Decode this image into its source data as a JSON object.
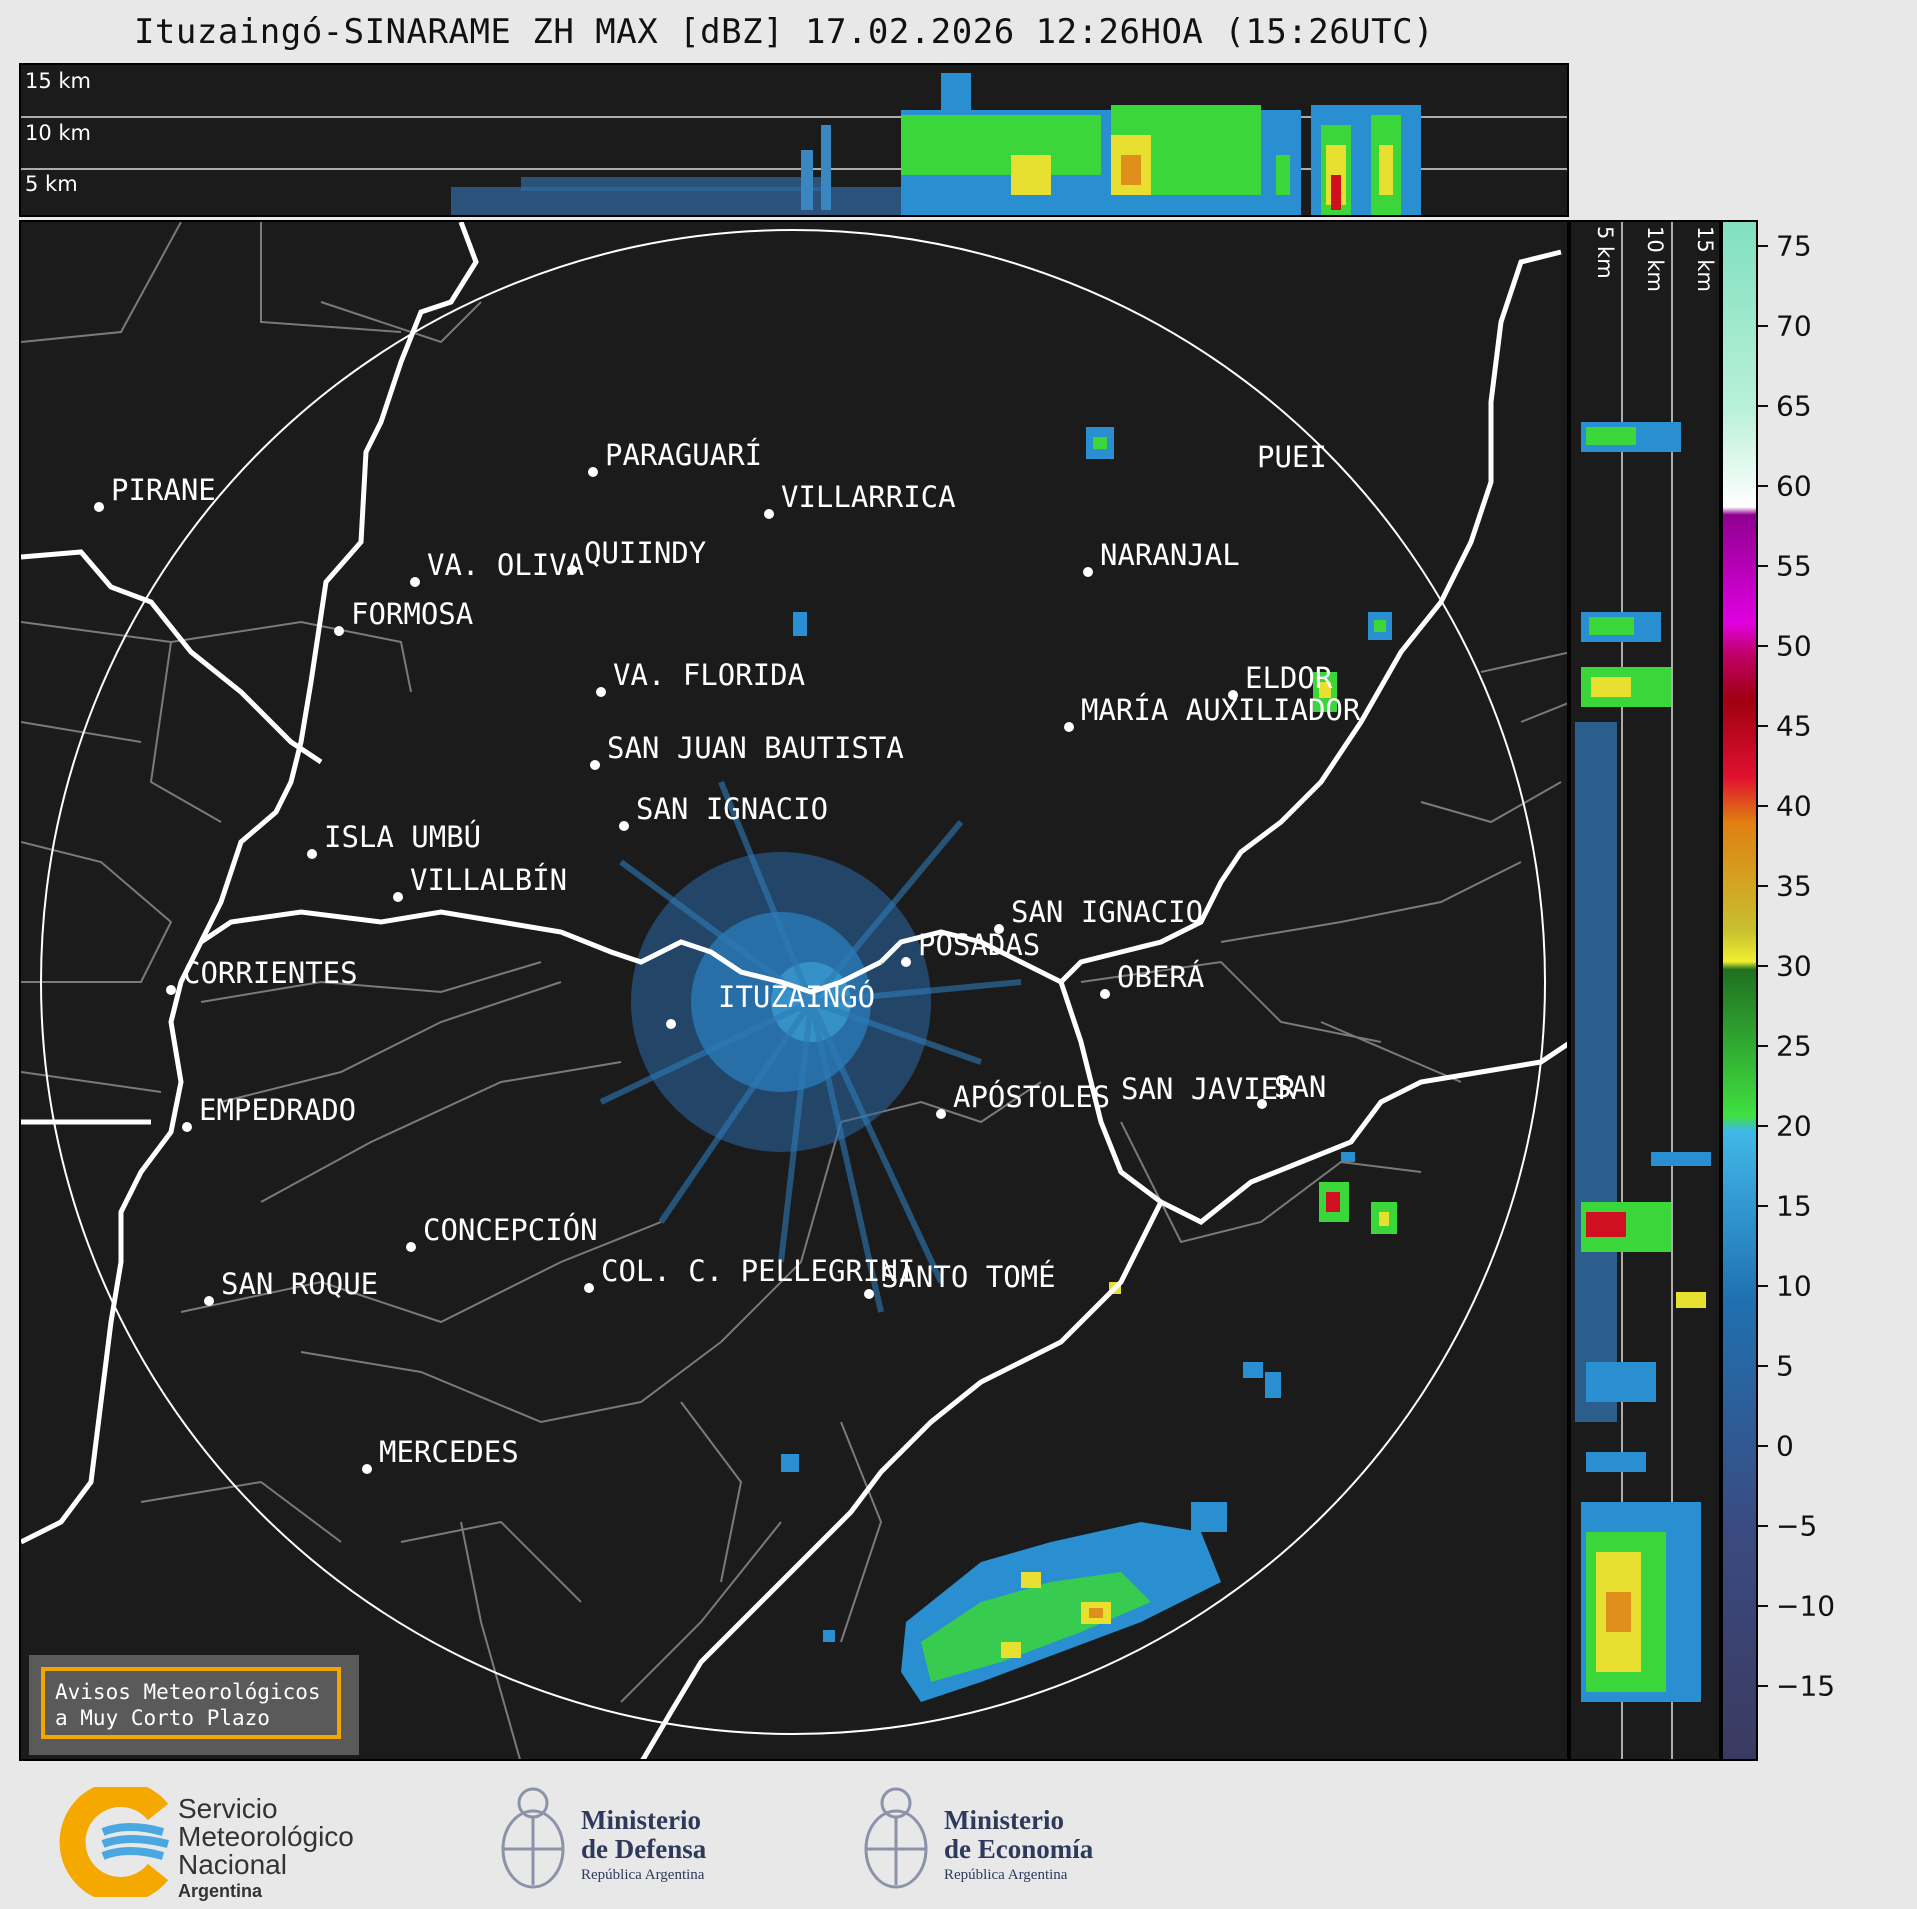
{
  "title": "Ituzaingó-SINARAME ZH MAX [dBZ] 17.02.2026 12:26HOA (15:26UTC)",
  "top_panel": {
    "altitude_labels": [
      "15 km",
      "10 km",
      "5 km"
    ]
  },
  "side_panel": {
    "altitude_labels": [
      "5 km",
      "10 km",
      "15 km"
    ]
  },
  "colorbar": {
    "unit": "dBZ",
    "ticks": [
      "75",
      "70",
      "65",
      "60",
      "55",
      "50",
      "45",
      "40",
      "35",
      "30",
      "25",
      "20",
      "15",
      "10",
      "5",
      "0",
      "−5",
      "−10",
      "−15"
    ],
    "colors": {
      "weak": "#3a4a7a",
      "light": "#2a8fd0",
      "moderate": "#3ad63a",
      "strong": "#e8e030",
      "heavy": "#e0901a",
      "intense": "#d01020",
      "extreme": "#b000b0",
      "very_extreme": "#a0e8d0"
    }
  },
  "map": {
    "radar_site": "ITUZAINGÓ",
    "cities": [
      {
        "name": "PIRANE"
      },
      {
        "name": "PARAGUARÍ"
      },
      {
        "name": "VILLARRICA"
      },
      {
        "name": "QUIINDY"
      },
      {
        "name": "VA. OLIVA"
      },
      {
        "name": "FORMOSA"
      },
      {
        "name": "NARANJAL"
      },
      {
        "name": "VA. FLORIDA"
      },
      {
        "name": "ELDOR"
      },
      {
        "name": "MARÍA AUXILIADOR"
      },
      {
        "name": "SAN JUAN BAUTISTA"
      },
      {
        "name": "SAN IGNACIO"
      },
      {
        "name": "ISLA UMBÚ"
      },
      {
        "name": "VILLALBÍN"
      },
      {
        "name": "SAN IGNACIO"
      },
      {
        "name": "POSADAS"
      },
      {
        "name": "CORRIENTES"
      },
      {
        "name": "OBERÁ"
      },
      {
        "name": "APÓSTOLES"
      },
      {
        "name": "SAN JAVIER"
      },
      {
        "name": "SAN"
      },
      {
        "name": "EMPEDRADO"
      },
      {
        "name": "CONCEPCIÓN"
      },
      {
        "name": "COL. C. PELLEGRINI"
      },
      {
        "name": "SANTO TOMÉ"
      },
      {
        "name": "SAN ROQUE"
      },
      {
        "name": "MERCEDES"
      },
      {
        "name": "PUEI"
      }
    ]
  },
  "warning": {
    "line1": "Avisos Meteorológicos",
    "line2": "a Muy Corto Plazo"
  },
  "footer": {
    "smn": {
      "line1": "Servicio",
      "line2": "Meteorológico",
      "line3": "Nacional",
      "line4": "Argentina"
    },
    "defensa": {
      "line1": "Ministerio",
      "line2": "de Defensa",
      "line3": "República Argentina"
    },
    "economia": {
      "line1": "Ministerio",
      "line2": "de Economía",
      "line3": "República Argentina"
    }
  }
}
